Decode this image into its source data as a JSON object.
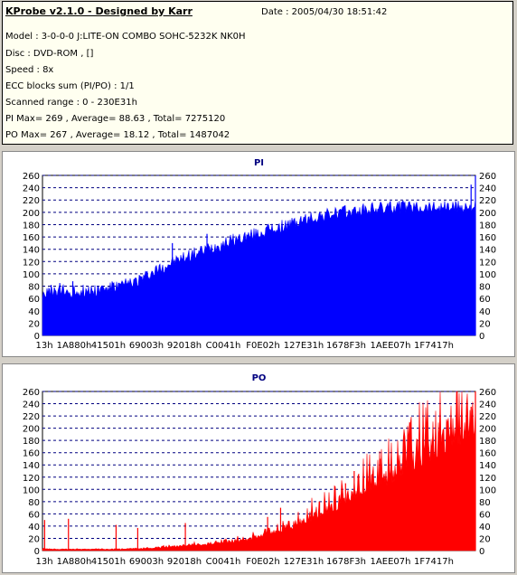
{
  "header": {
    "title": "KProbe v2.1.0 - Designed by Karr",
    "date_text": "Date : 2005/04/30 18:51:42",
    "lines": [
      "Model : 3-0-0-0 J:LITE-ON COMBO SOHC-5232K NK0H",
      "Disc : DVD-ROM ,  []",
      "Speed : 8x",
      "ECC blocks sum (PI/PO) : 1/1",
      "Scanned range : 0 - 230E31h",
      "PI Max= 269 , Average= 88.63 , Total= 7275120",
      "PO Max= 267 , Average= 18.12 , Total= 1487042"
    ]
  },
  "colors": {
    "pi": "#0000ff",
    "po": "#ff0000",
    "grid": "#000080"
  },
  "chart_data": [
    {
      "type": "area",
      "title": "PI",
      "color": "#0000ff",
      "ylim": [
        0,
        260
      ],
      "yticks": [
        0,
        20,
        40,
        60,
        80,
        100,
        120,
        140,
        160,
        180,
        200,
        220,
        240,
        260
      ],
      "xticks": [
        "13h",
        "1A880h",
        "41501h",
        "69003h",
        "92018h",
        "C0041h",
        "F0E02h",
        "127E31h",
        "1678F3h",
        "1AEE07h",
        "1F7417h"
      ],
      "grid": true,
      "x": [
        0,
        2,
        4,
        6,
        8,
        10,
        12,
        14,
        16,
        18,
        20,
        22,
        24,
        26,
        28,
        30,
        32,
        34,
        36,
        38,
        40,
        42,
        44,
        46,
        48,
        50,
        52,
        54,
        56,
        58,
        60,
        62,
        64,
        66,
        68,
        70,
        72,
        74,
        76,
        78,
        80,
        82,
        84,
        86,
        88,
        90,
        92,
        94,
        96,
        98,
        100
      ],
      "values": [
        70,
        68,
        72,
        70,
        72,
        73,
        74,
        76,
        78,
        80,
        84,
        90,
        96,
        104,
        112,
        118,
        124,
        130,
        134,
        140,
        144,
        150,
        154,
        158,
        162,
        165,
        170,
        174,
        178,
        182,
        186,
        190,
        193,
        196,
        198,
        200,
        201,
        203,
        205,
        206,
        207,
        208,
        209,
        209,
        209,
        209,
        209,
        209,
        209,
        209,
        210
      ],
      "spikes": [
        [
          2,
          82
        ],
        [
          4,
          85
        ],
        [
          7,
          88
        ],
        [
          30,
          150
        ],
        [
          38,
          165
        ],
        [
          52,
          180
        ],
        [
          60,
          185
        ],
        [
          66,
          195
        ],
        [
          78,
          205
        ],
        [
          99,
          245
        ],
        [
          100,
          269
        ]
      ]
    },
    {
      "type": "area",
      "title": "PO",
      "color": "#ff0000",
      "ylim": [
        0,
        260
      ],
      "yticks": [
        0,
        20,
        40,
        60,
        80,
        100,
        120,
        140,
        160,
        180,
        200,
        220,
        240,
        260
      ],
      "xticks": [
        "13h",
        "1A880h",
        "41501h",
        "69003h",
        "92018h",
        "C0041h",
        "F0E02h",
        "127E31h",
        "1678F3h",
        "1AEE07h",
        "1F7417h"
      ],
      "grid": true,
      "x": [
        0,
        2,
        4,
        6,
        8,
        10,
        12,
        14,
        16,
        18,
        20,
        22,
        24,
        26,
        28,
        30,
        32,
        34,
        36,
        38,
        40,
        42,
        44,
        46,
        48,
        50,
        52,
        54,
        56,
        58,
        60,
        62,
        64,
        66,
        68,
        70,
        72,
        74,
        76,
        78,
        80,
        82,
        84,
        86,
        88,
        90,
        92,
        94,
        96,
        98,
        100
      ],
      "values": [
        3,
        2,
        2,
        2,
        2,
        2,
        2,
        2,
        2,
        2,
        3,
        3,
        3,
        4,
        5,
        6,
        7,
        8,
        9,
        10,
        11,
        12,
        13,
        15,
        18,
        22,
        26,
        30,
        35,
        40,
        46,
        52,
        58,
        64,
        72,
        80,
        88,
        96,
        104,
        112,
        120,
        128,
        136,
        146,
        154,
        162,
        170,
        180,
        188,
        198,
        205
      ],
      "spikes": [
        [
          0.5,
          50
        ],
        [
          6,
          52
        ],
        [
          17,
          42
        ],
        [
          22,
          37
        ],
        [
          33,
          45
        ],
        [
          52,
          55
        ],
        [
          55,
          70
        ],
        [
          64,
          80
        ],
        [
          70,
          110
        ],
        [
          72,
          130
        ],
        [
          78,
          150
        ],
        [
          85,
          175
        ],
        [
          92,
          190
        ],
        [
          99,
          235
        ],
        [
          100,
          267
        ]
      ]
    }
  ]
}
